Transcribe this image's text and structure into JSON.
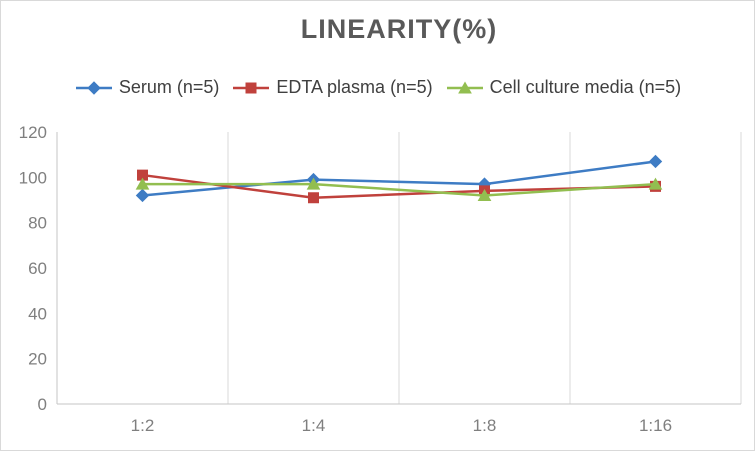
{
  "chart_data": {
    "type": "line",
    "title": "LINEARITY(%)",
    "categories": [
      "1:2",
      "1:4",
      "1:8",
      "1:16"
    ],
    "series": [
      {
        "name": "Serum (n=5)",
        "marker": "diamond",
        "color": "#3E7CC4",
        "values": [
          92,
          99,
          97,
          107
        ]
      },
      {
        "name": "EDTA plasma (n=5)",
        "marker": "square",
        "color": "#C0413C",
        "values": [
          101,
          91,
          94,
          96
        ]
      },
      {
        "name": "Cell culture media (n=5)",
        "marker": "triangle",
        "color": "#92BE50",
        "values": [
          97,
          97,
          92,
          97
        ]
      }
    ],
    "xlabel": "",
    "ylabel": "",
    "ylim": [
      0,
      120
    ],
    "yticks": [
      0,
      20,
      40,
      60,
      80,
      100,
      120
    ],
    "grid": "vertical-only",
    "legend_position": "top",
    "axis_color": "#c6c6c6",
    "gridline_color": "#d9d9d9",
    "tick_label_color": "#7f7f7f",
    "title_color": "#595959",
    "legend_text_color": "#404040"
  }
}
